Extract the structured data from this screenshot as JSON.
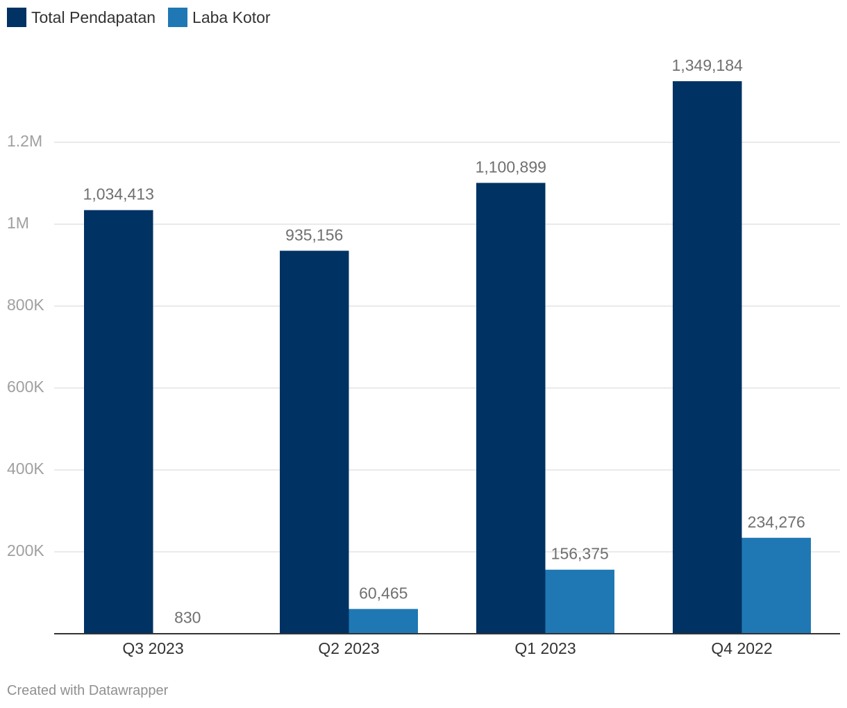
{
  "chart_data": {
    "type": "bar",
    "categories": [
      "Q3 2023",
      "Q2 2023",
      "Q1 2023",
      "Q4 2022"
    ],
    "series": [
      {
        "name": "Total Pendapatan",
        "color": "#003264",
        "values": [
          1034413,
          935156,
          1100899,
          1349184
        ],
        "labels": [
          "1,034,413",
          "935,156",
          "1,100,899",
          "1,349,184"
        ]
      },
      {
        "name": "Laba Kotor",
        "color": "#1f78b4",
        "values": [
          830,
          60465,
          156375,
          234276
        ],
        "labels": [
          "830",
          "60,465",
          "156,375",
          "234,276"
        ]
      }
    ],
    "yticks": [
      200000,
      400000,
      600000,
      800000,
      1000000,
      1200000
    ],
    "ytick_labels": [
      "200K",
      "400K",
      "600K",
      "800K",
      "1M",
      "1.2M"
    ],
    "ylim": [
      0,
      1400000
    ],
    "grid": true,
    "legend_position": "top-left"
  },
  "footer": {
    "credit": "Created with Datawrapper"
  }
}
